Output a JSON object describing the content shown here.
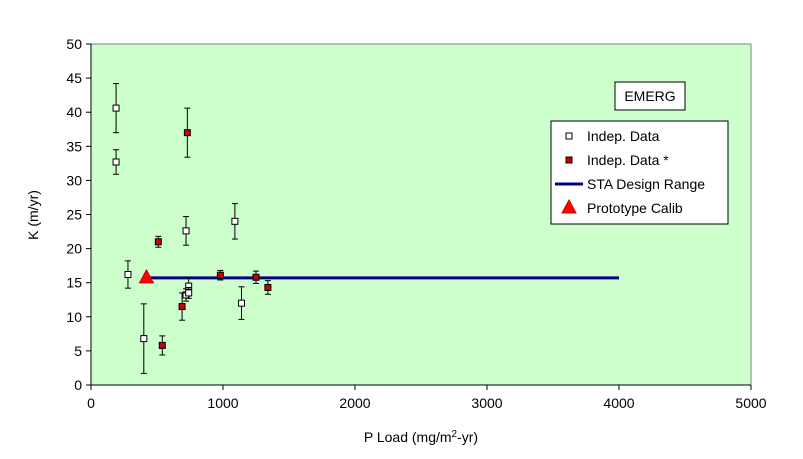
{
  "chart_data": {
    "type": "scatter",
    "xlabel": "P Load (mg/m",
    "xlabel_sup": "2",
    "xlabel_tail": "-yr)",
    "ylabel": "K (m/yr)",
    "xlim": [
      0,
      5000
    ],
    "ylim": [
      0,
      50
    ],
    "xticks": [
      0,
      1000,
      2000,
      3000,
      4000,
      5000
    ],
    "yticks": [
      0,
      5,
      10,
      15,
      20,
      25,
      30,
      35,
      40,
      45,
      50
    ],
    "grid": false,
    "legend_position": "right",
    "panel_label": "EMERG",
    "plot_background": "#ccffcc",
    "series": [
      {
        "name": "Indep. Data",
        "marker": "open-square",
        "color": "#000000",
        "points": [
          {
            "x": 190,
            "y": 40.6,
            "err": 3.6
          },
          {
            "x": 190,
            "y": 32.7,
            "err": 1.8
          },
          {
            "x": 280,
            "y": 16.2,
            "err": 2.0
          },
          {
            "x": 400,
            "y": 6.8,
            "err": 5.1
          },
          {
            "x": 720,
            "y": 22.6,
            "err": 2.1
          },
          {
            "x": 720,
            "y": 13.2,
            "err": 0.9
          },
          {
            "x": 740,
            "y": 14.5,
            "err": 1.2
          },
          {
            "x": 740,
            "y": 13.5,
            "err": 0.8
          },
          {
            "x": 1090,
            "y": 24.0,
            "err": 2.6
          },
          {
            "x": 1140,
            "y": 12.0,
            "err": 2.4
          }
        ]
      },
      {
        "name": "Indep. Data *",
        "marker": "filled-square",
        "color": "#cc0000",
        "points": [
          {
            "x": 510,
            "y": 21.0,
            "err": 0.8
          },
          {
            "x": 540,
            "y": 5.8,
            "err": 1.4
          },
          {
            "x": 690,
            "y": 11.5,
            "err": 2.0
          },
          {
            "x": 730,
            "y": 37.0,
            "err": 3.6
          },
          {
            "x": 980,
            "y": 16.1,
            "err": 0.7
          },
          {
            "x": 1250,
            "y": 15.8,
            "err": 0.9
          },
          {
            "x": 1340,
            "y": 14.3,
            "err": 1.0
          }
        ]
      },
      {
        "name": "STA Design Range",
        "type": "line",
        "color": "#000080",
        "points": [
          {
            "x": 420,
            "y": 15.7
          },
          {
            "x": 4000,
            "y": 15.7
          }
        ]
      },
      {
        "name": "Prototype Calib",
        "marker": "triangle",
        "color": "#ff0000",
        "points": [
          {
            "x": 420,
            "y": 15.7
          }
        ]
      }
    ]
  }
}
